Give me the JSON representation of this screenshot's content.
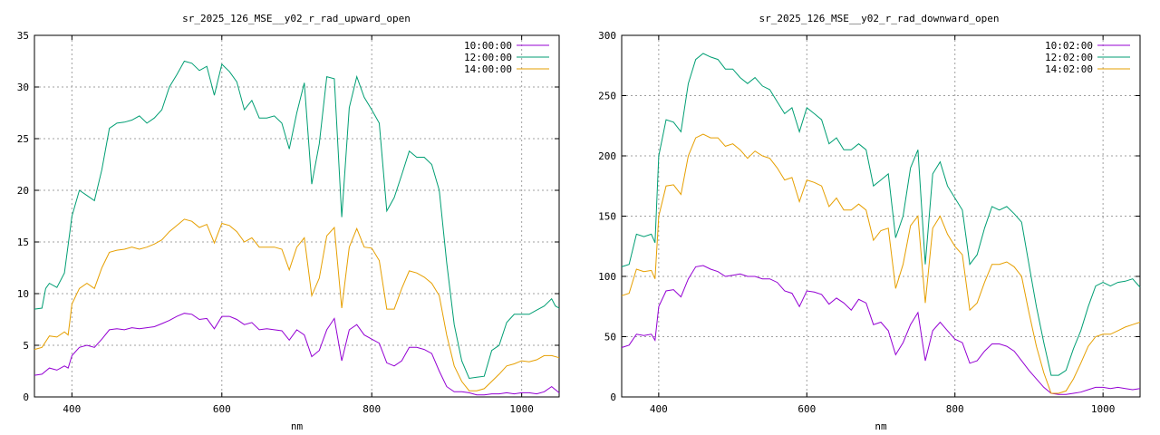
{
  "colors": {
    "purple": "#9400d3",
    "green": "#009e73",
    "orange": "#e69f00",
    "grid": "#a0a0a0"
  },
  "chart_data": [
    {
      "type": "line",
      "title": "sr_2025_126_MSE__y02_r_rad_upward_open",
      "xlabel": "nm",
      "ylabel": "",
      "xlim": [
        350,
        1050
      ],
      "ylim": [
        0,
        35
      ],
      "xticks": [
        400,
        600,
        800,
        1000
      ],
      "yticks": [
        0,
        5,
        10,
        15,
        20,
        25,
        30,
        35
      ],
      "grid": true,
      "legend": "top-right",
      "series": [
        {
          "name": "10:00:00",
          "color": "#9400d3",
          "x": [
            350,
            360,
            370,
            380,
            390,
            395,
            400,
            410,
            420,
            430,
            440,
            450,
            460,
            470,
            480,
            490,
            500,
            510,
            520,
            530,
            540,
            550,
            560,
            570,
            580,
            590,
            600,
            610,
            620,
            630,
            640,
            650,
            660,
            670,
            680,
            690,
            700,
            710,
            720,
            730,
            740,
            750,
            760,
            770,
            780,
            790,
            800,
            810,
            820,
            830,
            840,
            850,
            860,
            870,
            880,
            890,
            900,
            910,
            920,
            930,
            940,
            950,
            960,
            970,
            980,
            990,
            1000,
            1010,
            1020,
            1030,
            1040,
            1050
          ],
          "y": [
            2.1,
            2.2,
            2.8,
            2.6,
            3.0,
            2.8,
            4.0,
            4.8,
            5.0,
            4.8,
            5.6,
            6.5,
            6.6,
            6.5,
            6.7,
            6.6,
            6.7,
            6.8,
            7.1,
            7.4,
            7.8,
            8.1,
            8.0,
            7.5,
            7.6,
            6.6,
            7.8,
            7.8,
            7.5,
            7.0,
            7.2,
            6.5,
            6.6,
            6.5,
            6.4,
            5.5,
            6.5,
            6.0,
            3.9,
            4.5,
            6.5,
            7.6,
            3.5,
            6.5,
            7.0,
            6.0,
            5.6,
            5.2,
            3.3,
            3.0,
            3.5,
            4.8,
            4.8,
            4.6,
            4.2,
            2.5,
            1.0,
            0.5,
            0.5,
            0.4,
            0.2,
            0.2,
            0.3,
            0.3,
            0.4,
            0.3,
            0.4,
            0.4,
            0.3,
            0.5,
            1.0,
            0.4
          ]
        },
        {
          "name": "12:00:00",
          "color": "#009e73",
          "x": [
            350,
            360,
            365,
            370,
            380,
            390,
            400,
            410,
            420,
            430,
            440,
            450,
            460,
            470,
            480,
            490,
            500,
            510,
            520,
            530,
            540,
            550,
            560,
            570,
            580,
            590,
            600,
            610,
            620,
            630,
            640,
            650,
            660,
            670,
            680,
            690,
            700,
            710,
            720,
            730,
            740,
            750,
            760,
            770,
            780,
            790,
            800,
            810,
            820,
            830,
            840,
            850,
            860,
            870,
            880,
            890,
            900,
            910,
            920,
            930,
            940,
            950,
            960,
            970,
            980,
            990,
            1000,
            1010,
            1020,
            1030,
            1040,
            1045,
            1050
          ],
          "y": [
            8.5,
            8.6,
            10.5,
            11.0,
            10.6,
            12.0,
            17.5,
            20.0,
            19.5,
            19.0,
            22.0,
            26.0,
            26.5,
            26.6,
            26.8,
            27.2,
            26.5,
            27.0,
            27.8,
            30.0,
            31.2,
            32.5,
            32.3,
            31.6,
            32.0,
            29.2,
            32.2,
            31.5,
            30.5,
            27.8,
            28.7,
            27.0,
            27.0,
            27.2,
            26.5,
            24.0,
            27.5,
            30.4,
            20.6,
            24.5,
            31.0,
            30.8,
            17.4,
            28.0,
            31.0,
            29.0,
            27.8,
            26.5,
            18.0,
            19.3,
            21.5,
            23.8,
            23.2,
            23.2,
            22.5,
            20.0,
            13.0,
            7.0,
            3.5,
            1.8,
            1.9,
            2.0,
            4.5,
            5.0,
            7.2,
            8.0,
            8.0,
            8.0,
            8.4,
            8.8,
            9.5,
            8.8,
            8.6
          ]
        },
        {
          "name": "14:00:00",
          "color": "#e69f00",
          "x": [
            350,
            360,
            370,
            380,
            390,
            395,
            400,
            410,
            420,
            430,
            440,
            450,
            460,
            470,
            480,
            490,
            500,
            510,
            520,
            530,
            540,
            550,
            560,
            570,
            580,
            590,
            600,
            610,
            620,
            630,
            640,
            650,
            660,
            670,
            680,
            690,
            700,
            710,
            720,
            730,
            740,
            750,
            760,
            770,
            780,
            790,
            800,
            810,
            820,
            830,
            840,
            850,
            860,
            870,
            880,
            890,
            900,
            910,
            920,
            930,
            940,
            950,
            960,
            970,
            980,
            990,
            1000,
            1010,
            1020,
            1030,
            1040,
            1050
          ],
          "y": [
            4.6,
            4.8,
            5.9,
            5.8,
            6.3,
            6.0,
            9.0,
            10.5,
            11.0,
            10.5,
            12.5,
            14.0,
            14.2,
            14.3,
            14.5,
            14.3,
            14.5,
            14.8,
            15.2,
            16.0,
            16.6,
            17.2,
            17.0,
            16.4,
            16.7,
            14.9,
            16.8,
            16.6,
            16.0,
            15.0,
            15.4,
            14.5,
            14.5,
            14.5,
            14.3,
            12.3,
            14.5,
            15.4,
            9.8,
            11.5,
            15.6,
            16.4,
            8.6,
            14.5,
            16.3,
            14.5,
            14.4,
            13.2,
            8.5,
            8.5,
            10.5,
            12.2,
            12.0,
            11.6,
            11.0,
            9.8,
            6.0,
            3.0,
            1.5,
            0.6,
            0.6,
            0.8,
            1.5,
            2.2,
            3.0,
            3.2,
            3.5,
            3.4,
            3.6,
            4.0,
            4.0,
            3.8
          ]
        }
      ]
    },
    {
      "type": "line",
      "title": "sr_2025_126_MSE__y02_r_rad_downward_open",
      "xlabel": "nm",
      "ylabel": "",
      "xlim": [
        350,
        1050
      ],
      "ylim": [
        0,
        300
      ],
      "xticks": [
        400,
        600,
        800,
        1000
      ],
      "yticks": [
        0,
        50,
        100,
        150,
        200,
        250,
        300
      ],
      "grid": true,
      "legend": "top-right",
      "series": [
        {
          "name": "10:02:00",
          "color": "#9400d3",
          "x": [
            350,
            360,
            370,
            380,
            390,
            395,
            400,
            410,
            420,
            430,
            440,
            450,
            460,
            470,
            480,
            490,
            500,
            510,
            520,
            530,
            540,
            550,
            560,
            570,
            580,
            590,
            600,
            610,
            620,
            630,
            640,
            650,
            660,
            670,
            680,
            690,
            700,
            710,
            720,
            730,
            740,
            750,
            760,
            770,
            780,
            790,
            800,
            810,
            820,
            830,
            840,
            850,
            860,
            870,
            880,
            890,
            900,
            910,
            920,
            930,
            940,
            950,
            960,
            970,
            980,
            990,
            1000,
            1010,
            1020,
            1030,
            1040,
            1050
          ],
          "y": [
            41,
            43,
            52,
            51,
            52,
            47,
            75,
            88,
            89,
            83,
            98,
            108,
            109,
            106,
            104,
            100,
            101,
            102,
            100,
            100,
            98,
            98,
            95,
            88,
            86,
            75,
            88,
            87,
            85,
            77,
            82,
            78,
            72,
            81,
            78,
            60,
            62,
            55,
            35,
            45,
            60,
            70,
            30,
            55,
            62,
            55,
            48,
            45,
            28,
            30,
            38,
            44,
            44,
            42,
            38,
            30,
            22,
            15,
            8,
            3,
            2,
            2,
            3,
            4,
            6,
            8,
            8,
            7,
            8,
            7,
            6,
            7
          ]
        },
        {
          "name": "12:02:00",
          "color": "#009e73",
          "x": [
            350,
            360,
            370,
            380,
            390,
            395,
            400,
            410,
            420,
            430,
            440,
            450,
            460,
            470,
            480,
            490,
            500,
            510,
            520,
            530,
            540,
            550,
            560,
            570,
            580,
            590,
            600,
            610,
            620,
            630,
            640,
            650,
            660,
            670,
            680,
            690,
            700,
            710,
            720,
            730,
            740,
            750,
            760,
            770,
            780,
            790,
            800,
            810,
            820,
            830,
            840,
            850,
            860,
            870,
            880,
            890,
            900,
            910,
            920,
            930,
            940,
            950,
            960,
            970,
            980,
            990,
            1000,
            1010,
            1020,
            1030,
            1040,
            1050
          ],
          "y": [
            108,
            110,
            135,
            133,
            135,
            128,
            200,
            230,
            228,
            220,
            260,
            280,
            285,
            282,
            280,
            272,
            272,
            265,
            260,
            265,
            258,
            255,
            245,
            235,
            240,
            220,
            240,
            235,
            230,
            210,
            215,
            205,
            205,
            210,
            205,
            175,
            180,
            185,
            132,
            150,
            190,
            205,
            110,
            185,
            195,
            175,
            165,
            155,
            110,
            118,
            140,
            158,
            155,
            158,
            152,
            145,
            110,
            75,
            45,
            18,
            18,
            22,
            40,
            55,
            75,
            92,
            95,
            92,
            95,
            96,
            98,
            91
          ]
        },
        {
          "name": "14:02:00",
          "color": "#e69f00",
          "x": [
            350,
            360,
            370,
            380,
            390,
            395,
            400,
            410,
            420,
            430,
            440,
            450,
            460,
            470,
            480,
            490,
            500,
            510,
            520,
            530,
            540,
            550,
            560,
            570,
            580,
            590,
            600,
            610,
            620,
            630,
            640,
            650,
            660,
            670,
            680,
            690,
            700,
            710,
            720,
            730,
            740,
            750,
            760,
            770,
            780,
            790,
            800,
            810,
            820,
            830,
            840,
            850,
            860,
            870,
            880,
            890,
            900,
            910,
            920,
            930,
            940,
            950,
            960,
            970,
            980,
            990,
            1000,
            1010,
            1020,
            1030,
            1040,
            1050
          ],
          "y": [
            84,
            86,
            106,
            104,
            105,
            98,
            150,
            175,
            176,
            168,
            200,
            215,
            218,
            215,
            215,
            208,
            210,
            205,
            198,
            204,
            200,
            198,
            190,
            180,
            182,
            162,
            180,
            178,
            175,
            158,
            165,
            155,
            155,
            160,
            155,
            130,
            138,
            140,
            90,
            110,
            142,
            150,
            78,
            140,
            150,
            135,
            125,
            118,
            72,
            78,
            95,
            110,
            110,
            112,
            108,
            100,
            70,
            42,
            20,
            3,
            3,
            5,
            15,
            28,
            42,
            50,
            52,
            52,
            55,
            58,
            60,
            62
          ]
        }
      ]
    }
  ]
}
